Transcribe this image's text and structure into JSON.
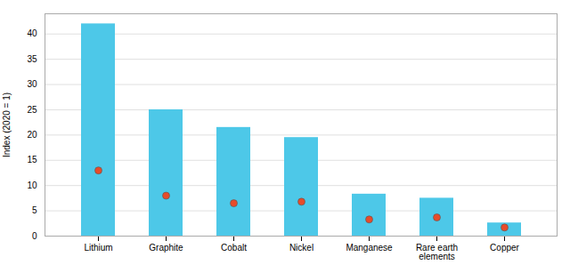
{
  "chart_data": {
    "type": "bar",
    "categories": [
      "Lithium",
      "Graphite",
      "Cobalt",
      "Nickel",
      "Manganese",
      "Rare earth elements",
      "Copper"
    ],
    "series": [
      {
        "type": "bar",
        "color": "#4DC8E8",
        "values": [
          42,
          25,
          21.5,
          19.5,
          8.3,
          7.5,
          2.6
        ]
      },
      {
        "type": "scatter",
        "color": "#E84B2A",
        "values": [
          13,
          8,
          6.5,
          6.8,
          3.3,
          3.7,
          1.7
        ]
      }
    ],
    "ylabel": "Index (2020 = 1)",
    "ylim": [
      0,
      44
    ],
    "yticks": [
      0,
      5,
      10,
      15,
      20,
      25,
      30,
      35,
      40
    ],
    "grid": true
  }
}
